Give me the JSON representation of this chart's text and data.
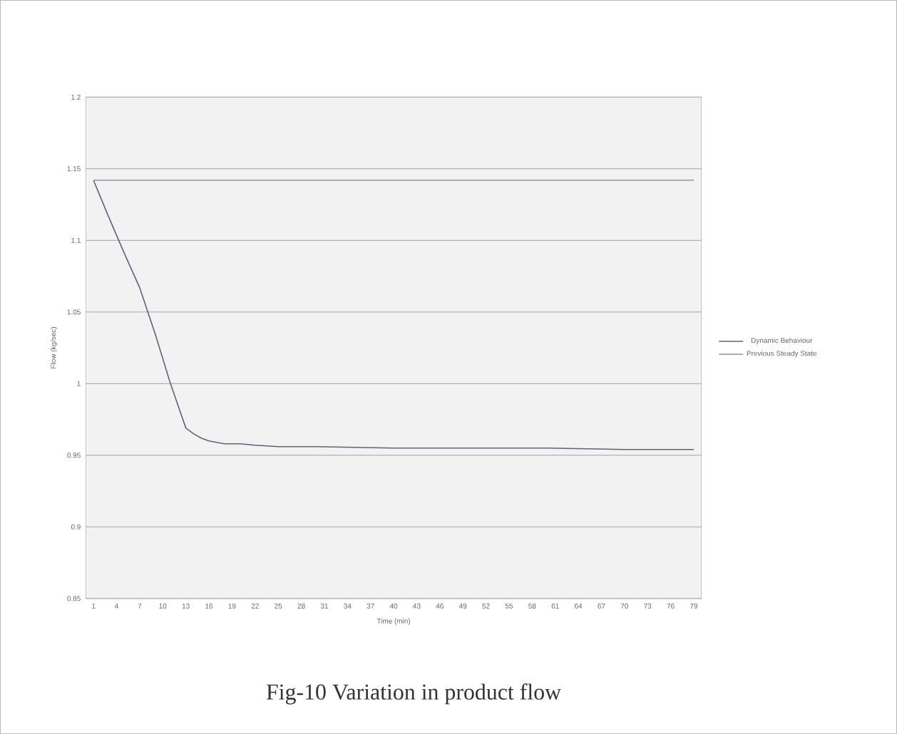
{
  "chart_data": {
    "type": "line",
    "xlabel": "Time (min)",
    "ylabel": "Flow (kg/sec)",
    "annotations": [
      "Fig-10 Variation in product flow"
    ],
    "xlim": [
      0,
      80
    ],
    "xticks": [
      1,
      4,
      7,
      10,
      13,
      16,
      19,
      22,
      25,
      28,
      31,
      34,
      37,
      40,
      43,
      46,
      49,
      52,
      55,
      58,
      61,
      64,
      67,
      70,
      73,
      76,
      79
    ],
    "ylim": [
      0.85,
      1.2
    ],
    "yticks": [
      0.85,
      0.9,
      0.95,
      1,
      1.05,
      1.1,
      1.15,
      1.2
    ],
    "grid": "y",
    "legend": "right",
    "marker": "none",
    "line_style": "solid",
    "series": [
      {
        "name": "Dynamic Behaviour",
        "color": "#5b6478",
        "x": [
          1,
          3,
          5,
          7,
          9,
          11,
          13,
          14,
          15,
          16,
          17,
          18,
          19,
          20,
          22,
          25,
          30,
          40,
          50,
          60,
          70,
          79
        ],
        "values": [
          1.142,
          1.116,
          1.091,
          1.067,
          1.035,
          1.0,
          0.969,
          0.965,
          0.962,
          0.96,
          0.959,
          0.958,
          0.958,
          0.958,
          0.957,
          0.956,
          0.956,
          0.955,
          0.955,
          0.955,
          0.954,
          0.954
        ]
      },
      {
        "name": "Previous Steady State",
        "color": "#9aa0b4",
        "x": [
          1,
          79
        ],
        "values": [
          1.142,
          1.142
        ]
      }
    ]
  }
}
